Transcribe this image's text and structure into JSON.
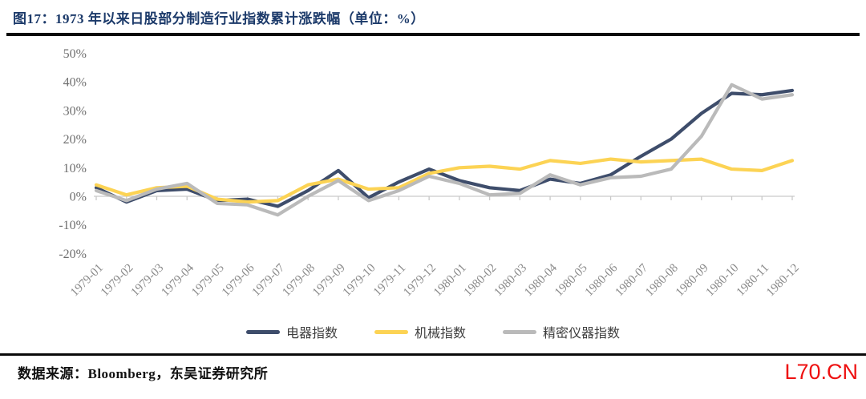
{
  "header": {
    "title": "图17：1973 年以来日股部分制造行业指数累计涨跌幅（单位：%）"
  },
  "chart_data": {
    "type": "line",
    "title": "1973 年以来日股部分制造行业指数累计涨跌幅",
    "unit": "%",
    "categories": [
      "1979-01",
      "1979-02",
      "1979-03",
      "1979-04",
      "1979-05",
      "1979-06",
      "1979-07",
      "1979-08",
      "1979-09",
      "1979-10",
      "1979-11",
      "1979-12",
      "1980-01",
      "1980-02",
      "1980-03",
      "1980-04",
      "1980-05",
      "1980-06",
      "1980-07",
      "1980-08",
      "1980-09",
      "1980-10",
      "1980-11",
      "1980-12"
    ],
    "series": [
      {
        "name": "电器指数",
        "color": "#3e4d6b",
        "values": [
          3,
          -2,
          2,
          2.5,
          -1.5,
          -1,
          -3.5,
          2,
          9,
          -0.5,
          5,
          9.5,
          5.5,
          3,
          2,
          6,
          4.5,
          7.5,
          14,
          20,
          29,
          36,
          35.5,
          37
        ]
      },
      {
        "name": "机械指数",
        "color": "#fcd354",
        "values": [
          4,
          0.5,
          3,
          3.5,
          -1,
          -2,
          -1.5,
          4,
          6,
          2.5,
          3,
          8,
          10,
          10.5,
          9.5,
          12.5,
          11.5,
          13,
          12,
          12.5,
          13,
          9.5,
          9,
          12.5
        ]
      },
      {
        "name": "精密仪器指数",
        "color": "#bababa",
        "values": [
          2,
          -1.5,
          2.5,
          4.5,
          -2.5,
          -3,
          -6.5,
          0,
          5.5,
          -1.5,
          2,
          7,
          4.5,
          0.5,
          1,
          7.5,
          4,
          6.5,
          7,
          9.5,
          21,
          39,
          34,
          35.5
        ]
      }
    ],
    "ylim": [
      -20,
      50
    ],
    "yticks": [
      50,
      40,
      30,
      20,
      10,
      0,
      -10,
      -20
    ],
    "ytick_suffix": "%",
    "grid": false,
    "legend_position": "bottom",
    "axis_color": "#c9c9c9"
  },
  "footer": {
    "source": "数据来源：Bloomberg，东吴证券研究所",
    "watermark": "L70.CN",
    "watermark_color": "#ee1111"
  }
}
